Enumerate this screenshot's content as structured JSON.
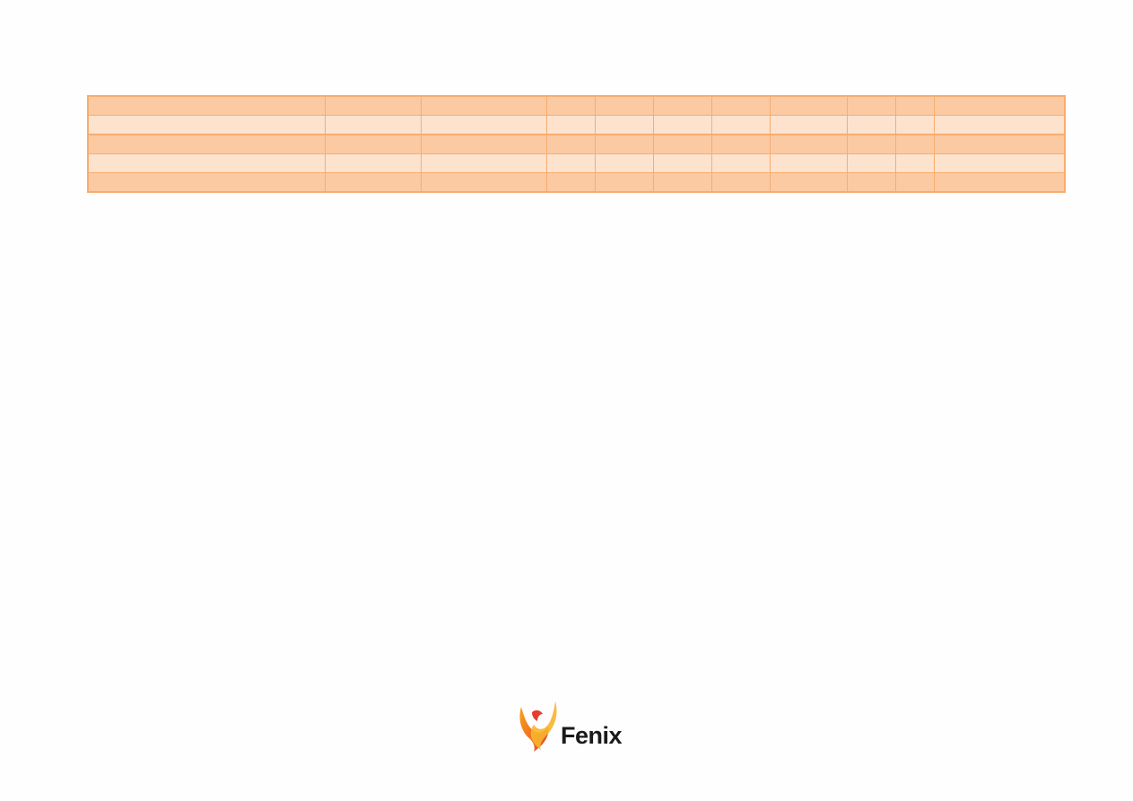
{
  "table": {
    "columns": 11,
    "rows": [
      {
        "style": "dark",
        "cells": [
          "",
          "",
          "",
          "",
          "",
          "",
          "",
          "",
          "",
          "",
          ""
        ]
      },
      {
        "style": "light",
        "cells": [
          "",
          "",
          "",
          "",
          "",
          "",
          "",
          "",
          "",
          "",
          ""
        ]
      },
      {
        "style": "dark",
        "cells": [
          "",
          "",
          "",
          "",
          "",
          "",
          "",
          "",
          "",
          "",
          ""
        ]
      },
      {
        "style": "light",
        "cells": [
          "",
          "",
          "",
          "",
          "",
          "",
          "",
          "",
          "",
          "",
          ""
        ]
      },
      {
        "style": "dark",
        "cells": [
          "",
          "",
          "",
          "",
          "",
          "",
          "",
          "",
          "",
          "",
          ""
        ]
      }
    ],
    "colors": {
      "border": "#f7ad6f",
      "dark_row": "#fbcaa3",
      "light_row": "#fde2cd"
    }
  },
  "footer": {
    "logo_text": "Fenix",
    "logo_icon": "phoenix-flame-icon"
  }
}
